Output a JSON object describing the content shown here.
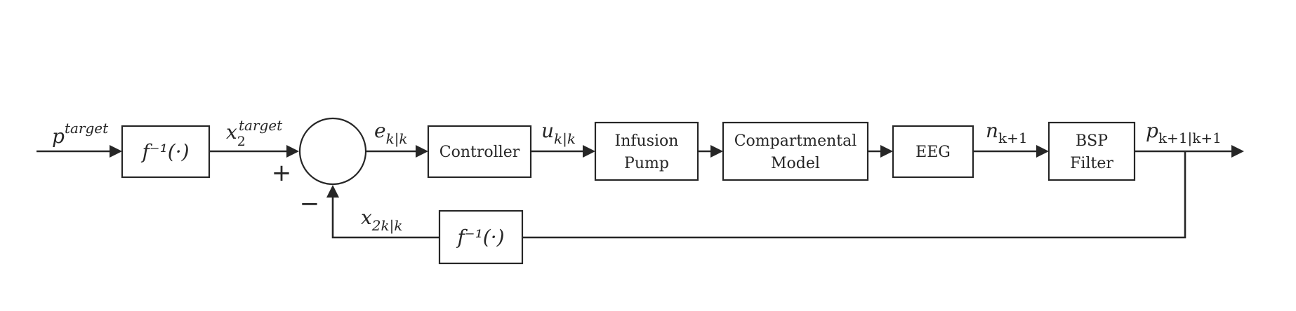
{
  "blocks": {
    "finv_forward": "f⁻¹(·)",
    "controller": "Controller",
    "infusion_pump": [
      "Infusion",
      "Pump"
    ],
    "compartmental_model": [
      "Compartmental",
      "Model"
    ],
    "eeg": "EEG",
    "bsp_filter": [
      "BSP",
      "Filter"
    ],
    "finv_feedback": "f⁻¹(·)"
  },
  "signals": {
    "p_target": {
      "base": "p",
      "sup": "target"
    },
    "x2_target": {
      "base": "x",
      "sub": "2",
      "sup": "target"
    },
    "e_kk": {
      "base": "e",
      "sub": "k|k"
    },
    "u_kk": {
      "base": "u",
      "sub": "k|k"
    },
    "n_k1": {
      "base": "n",
      "sub": "k+1"
    },
    "p_k1k1": {
      "base": "p",
      "sub": "k+1|k+1"
    },
    "x2_kk": {
      "base": "x",
      "sub": "2k|k"
    }
  },
  "summing_junction": {
    "plus_sign": "+",
    "minus_sign": "−"
  },
  "colors": {
    "line": "#262626",
    "background": "#ffffff"
  }
}
